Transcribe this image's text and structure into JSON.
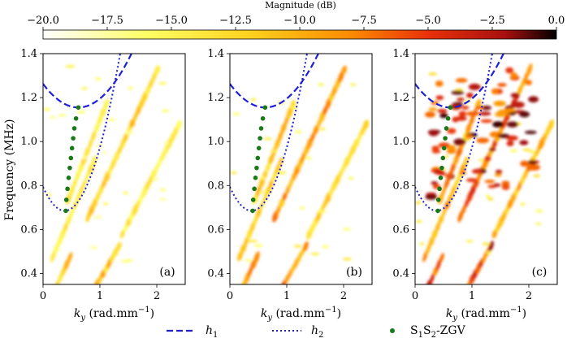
{
  "chart_data": [
    {
      "type": "colorbar",
      "title": "Magnitude (dB)",
      "range": [
        -20.0,
        0.0
      ],
      "ticks": [
        -20.0,
        -17.5,
        -15.0,
        -12.5,
        -10.0,
        -7.5,
        -5.0,
        -2.5,
        0.0
      ],
      "tick_labels": [
        "−20.0",
        "−17.5",
        "−15.0",
        "−12.5",
        "−10.0",
        "−7.5",
        "−5.0",
        "−2.5",
        "0.0"
      ],
      "colormap": [
        "#ffffff",
        "#ffff66",
        "#ffd21e",
        "#ff8a00",
        "#e8310a",
        "#a80f0f",
        "#000000"
      ]
    },
    {
      "type": "heatmap",
      "panels": [
        {
          "label": "(a)",
          "intensity": 0.55,
          "extra_blobs": false
        },
        {
          "label": "(b)",
          "intensity": 0.75,
          "extra_blobs": false
        },
        {
          "label": "(c)",
          "intensity": 1.0,
          "extra_blobs": true
        }
      ],
      "xlabel_prefix": "k",
      "xlabel_sub": "y",
      "xlabel_rest": " (rad.mm",
      "xlabel_sup": "−1",
      "xlabel_close": ")",
      "ylabel": "Frequency (MHz)",
      "xlim": [
        0,
        2.5
      ],
      "ylim": [
        0.35,
        1.4
      ],
      "xticks": [
        0,
        1,
        2
      ],
      "yticks": [
        0.4,
        0.6,
        0.8,
        1.0,
        1.2,
        1.4
      ],
      "ytick_labels": [
        "0.4",
        "0.6",
        "0.8",
        "1.0",
        "1.2",
        "1.4"
      ],
      "curves": {
        "h1": {
          "k0": 0.62,
          "f0": 1.155,
          "a": 0.28,
          "color": "#1f1fd6"
        },
        "h2": {
          "k0": 0.38,
          "f0": 0.685,
          "a": 0.75,
          "color": "#1f1fd6"
        }
      },
      "zgv_points": [
        {
          "k": 0.4,
          "f": 0.685
        },
        {
          "k": 0.41,
          "f": 0.735
        },
        {
          "k": 0.43,
          "f": 0.785
        },
        {
          "k": 0.45,
          "f": 0.835
        },
        {
          "k": 0.47,
          "f": 0.88
        },
        {
          "k": 0.49,
          "f": 0.925
        },
        {
          "k": 0.51,
          "f": 0.97
        },
        {
          "k": 0.53,
          "f": 1.015
        },
        {
          "k": 0.55,
          "f": 1.06
        },
        {
          "k": 0.58,
          "f": 1.105
        },
        {
          "k": 0.62,
          "f": 1.155
        }
      ],
      "zgv_color": "#1a7a1a",
      "legend": {
        "placement": "bottom",
        "entries": [
          {
            "id": "h1",
            "main": "h",
            "sub": "1",
            "style": "dashed"
          },
          {
            "id": "h2",
            "main": "h",
            "sub": "2",
            "style": "dotted"
          },
          {
            "id": "zgv",
            "main": "S",
            "sub": "1",
            "main2": "S",
            "sub2": "2",
            "rest": "-ZGV",
            "style": "dot"
          }
        ]
      }
    }
  ]
}
